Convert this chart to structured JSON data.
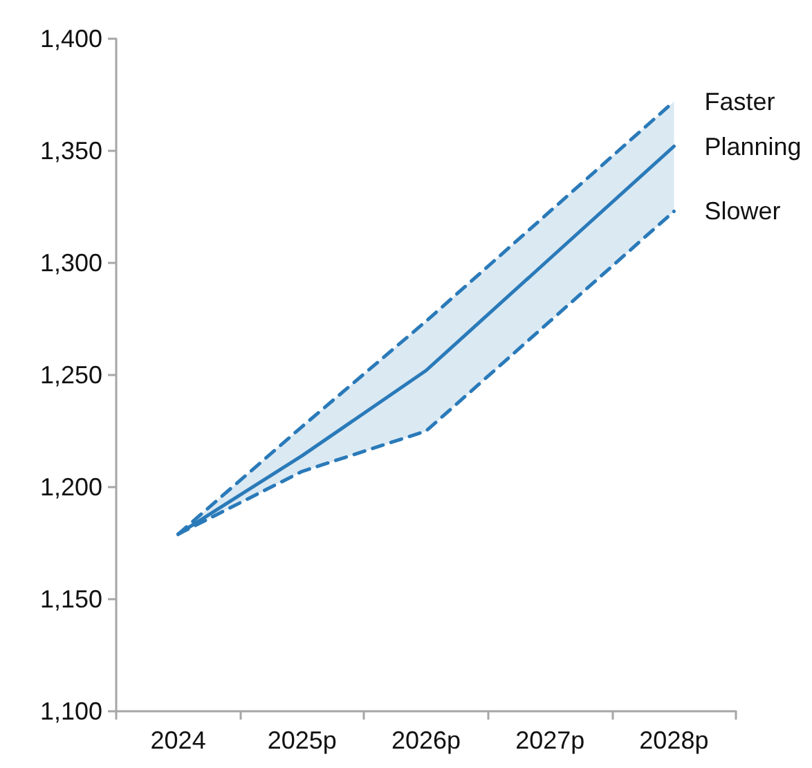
{
  "chart_data": {
    "type": "line",
    "categories": [
      "2024",
      "2025p",
      "2026p",
      "2027p",
      "2028p"
    ],
    "series": [
      {
        "name": "Faster",
        "color": "#2a7ab9",
        "line_style": "dashed",
        "values": [
          1179,
          1227,
          1274,
          1323,
          1372
        ]
      },
      {
        "name": "Planning",
        "color": "#2a7ab9",
        "line_style": "solid",
        "values": [
          1179,
          1214,
          1252,
          1302,
          1352
        ],
        "lower": [
          1179,
          1207,
          1225,
          1274,
          1323
        ],
        "upper": [
          1179,
          1227,
          1274,
          1323,
          1372
        ]
      },
      {
        "name": "Slower",
        "color": "#2a7ab9",
        "line_style": "dashed",
        "values": [
          1179,
          1207,
          1225,
          1274,
          1323
        ]
      }
    ],
    "ylim": [
      1100,
      1400
    ],
    "yticks": [
      {
        "value": 1100,
        "label": "1,100"
      },
      {
        "value": 1150,
        "label": "1,150"
      },
      {
        "value": 1200,
        "label": "1,200"
      },
      {
        "value": 1250,
        "label": "1,250"
      },
      {
        "value": 1300,
        "label": "1,300"
      },
      {
        "value": 1350,
        "label": "1,350"
      },
      {
        "value": 1400,
        "label": "1,400"
      }
    ],
    "grid": false,
    "legend": false,
    "marker": "none"
  }
}
